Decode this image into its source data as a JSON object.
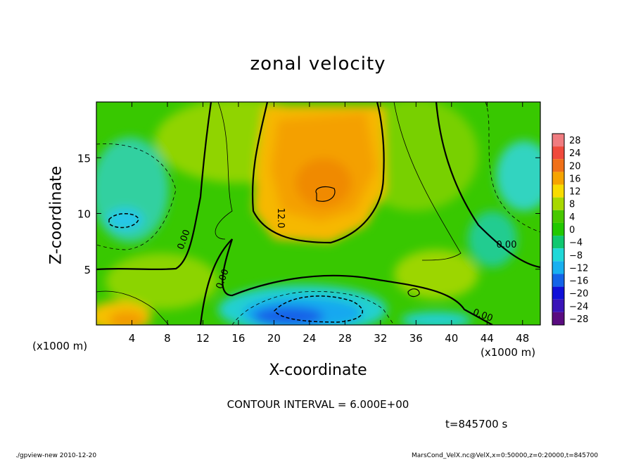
{
  "chart_data": {
    "type": "heatmap",
    "title": "zonal velocity",
    "xlabel": "X-coordinate",
    "ylabel": "Z-coordinate",
    "x_unit": "(x1000 m)",
    "xlim": [
      0,
      50
    ],
    "ylim": [
      0,
      20
    ],
    "x_ticks": [
      4,
      8,
      12,
      16,
      20,
      24,
      28,
      32,
      36,
      40,
      44,
      48
    ],
    "y_ticks": [
      5,
      10,
      15
    ],
    "colorbar": {
      "levels": [
        28,
        24,
        20,
        16,
        12,
        8,
        4,
        0,
        -4,
        -8,
        -12,
        -16,
        -20,
        -24,
        -28
      ],
      "colors": [
        "#f07c80",
        "#f04a3c",
        "#f07018",
        "#f6a400",
        "#f8dc00",
        "#a8d800",
        "#48c800",
        "#22c800",
        "#10c870",
        "#20d8d8",
        "#18b0f0",
        "#1464e8",
        "#1010d8",
        "#3a14b8",
        "#5a0c80"
      ]
    },
    "contour_labels": [
      "0.00",
      "0.00",
      "12.0",
      "0.00",
      "0.00"
    ],
    "contour_interval": "CONTOUR INTERVAL = 6.000E+00",
    "time": "t=845700 s",
    "grid": false,
    "legend": "right"
  },
  "footer": {
    "left": "./gpview-new  2010-12-20",
    "right": "MarsCond_VelX.nc@VelX,x=0:50000,z=0:20000,t=845700"
  }
}
